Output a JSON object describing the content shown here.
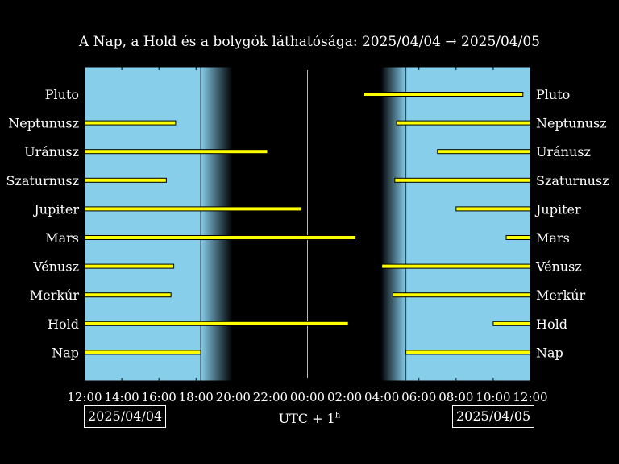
{
  "title": "A Nap, a Hold és a bolygók láthatósága: 2025/04/04 → 2025/04/05",
  "date_start": "2025/04/04",
  "date_end": "2025/04/05",
  "timezone_label": "UTC + 1",
  "timezone_sup": "h",
  "colors": {
    "day": "#87ceeb",
    "night": "#000000",
    "bar": "#ffff00",
    "bar_edge": "#000000"
  },
  "chart_data": {
    "type": "bar",
    "orientation": "horizontal",
    "x_unit": "hours since 12:00 on 2025/04/04",
    "xlim": [
      0,
      24
    ],
    "x_ticks": [
      "12:00",
      "14:00",
      "16:00",
      "18:00",
      "20:00",
      "22:00",
      "00:00",
      "02:00",
      "04:00",
      "06:00",
      "08:00",
      "10:00",
      "12:00"
    ],
    "sunset": 6.25,
    "dusk_end": 7.95,
    "dawn_start": 15.95,
    "sunrise": 17.3,
    "midnight": 12,
    "bodies": [
      {
        "name": "Pluto",
        "intervals": [
          [
            15.0,
            23.6
          ]
        ]
      },
      {
        "name": "Neptunusz",
        "intervals": [
          [
            0.0,
            4.9
          ],
          [
            16.8,
            24.0
          ]
        ]
      },
      {
        "name": "Uránusz",
        "intervals": [
          [
            0.0,
            9.85
          ],
          [
            19.0,
            24.0
          ]
        ]
      },
      {
        "name": "Szaturnusz",
        "intervals": [
          [
            0.0,
            4.4
          ],
          [
            16.7,
            24.0
          ]
        ]
      },
      {
        "name": "Jupiter",
        "intervals": [
          [
            0.0,
            11.7
          ],
          [
            20.0,
            24.0
          ]
        ]
      },
      {
        "name": "Mars",
        "intervals": [
          [
            0.0,
            14.6
          ],
          [
            22.7,
            24.0
          ]
        ]
      },
      {
        "name": "Vénusz",
        "intervals": [
          [
            0.0,
            4.8
          ],
          [
            16.0,
            24.0
          ]
        ]
      },
      {
        "name": "Merkúr",
        "intervals": [
          [
            0.0,
            4.65
          ],
          [
            16.6,
            24.0
          ]
        ]
      },
      {
        "name": "Hold",
        "intervals": [
          [
            0.0,
            14.2
          ],
          [
            22.0,
            24.0
          ]
        ]
      },
      {
        "name": "Nap",
        "intervals": [
          [
            0.0,
            6.25
          ],
          [
            17.3,
            24.0
          ]
        ]
      }
    ]
  }
}
